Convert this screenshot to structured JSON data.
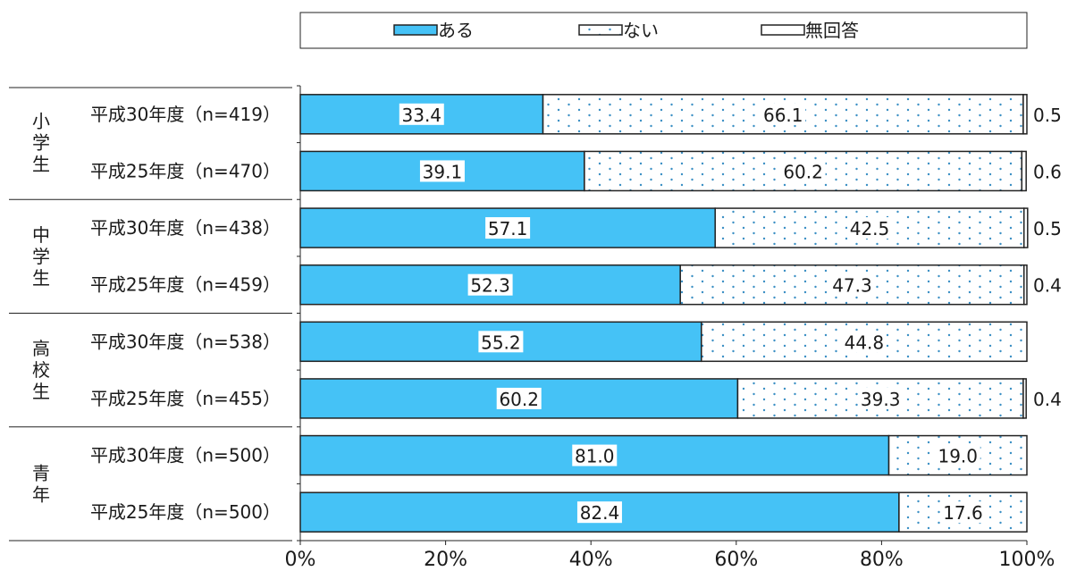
{
  "chart_data": {
    "type": "bar",
    "stacked": true,
    "orientation": "horizontal",
    "percent_scale": true,
    "xlim": [
      0,
      100
    ],
    "x_ticks": [
      "0%",
      "20%",
      "40%",
      "60%",
      "80%",
      "100%"
    ],
    "legend": {
      "position": "top"
    },
    "colors": {
      "aru": "#45c2f6",
      "nai_dot": "#3a8fc4",
      "edge": "#222222"
    },
    "series": [
      {
        "name": "ある",
        "pattern": "solid"
      },
      {
        "name": "ない",
        "pattern": "dots"
      },
      {
        "name": "無回答",
        "pattern": "blank"
      }
    ],
    "groups": [
      {
        "name": "小学生",
        "rows": [
          {
            "label": "平成30年度（n=419）",
            "values": [
              33.4,
              66.1,
              0.5
            ],
            "labels": [
              "33.4",
              "66.1",
              "0.5"
            ]
          },
          {
            "label": "平成25年度（n=470）",
            "values": [
              39.1,
              60.2,
              0.6
            ],
            "labels": [
              "39.1",
              "60.2",
              "0.6"
            ]
          }
        ]
      },
      {
        "name": "中学生",
        "rows": [
          {
            "label": "平成30年度（n=438）",
            "values": [
              57.1,
              42.5,
              0.5
            ],
            "labels": [
              "57.1",
              "42.5",
              "0.5"
            ]
          },
          {
            "label": "平成25年度（n=459）",
            "values": [
              52.3,
              47.3,
              0.4
            ],
            "labels": [
              "52.3",
              "47.3",
              "0.4"
            ]
          }
        ]
      },
      {
        "name": "高校生",
        "rows": [
          {
            "label": "平成30年度（n=538）",
            "values": [
              55.2,
              44.8,
              0
            ],
            "labels": [
              "55.2",
              "44.8",
              ""
            ]
          },
          {
            "label": "平成25年度（n=455）",
            "values": [
              60.2,
              39.3,
              0.4
            ],
            "labels": [
              "60.2",
              "39.3",
              "0.4"
            ]
          }
        ]
      },
      {
        "name": "青年",
        "rows": [
          {
            "label": "平成30年度（n=500）",
            "values": [
              81.0,
              19.0,
              0
            ],
            "labels": [
              "81.0",
              "19.0",
              ""
            ]
          },
          {
            "label": "平成25年度（n=500）",
            "values": [
              82.4,
              17.6,
              0
            ],
            "labels": [
              "82.4",
              "17.6",
              ""
            ]
          }
        ]
      }
    ]
  }
}
